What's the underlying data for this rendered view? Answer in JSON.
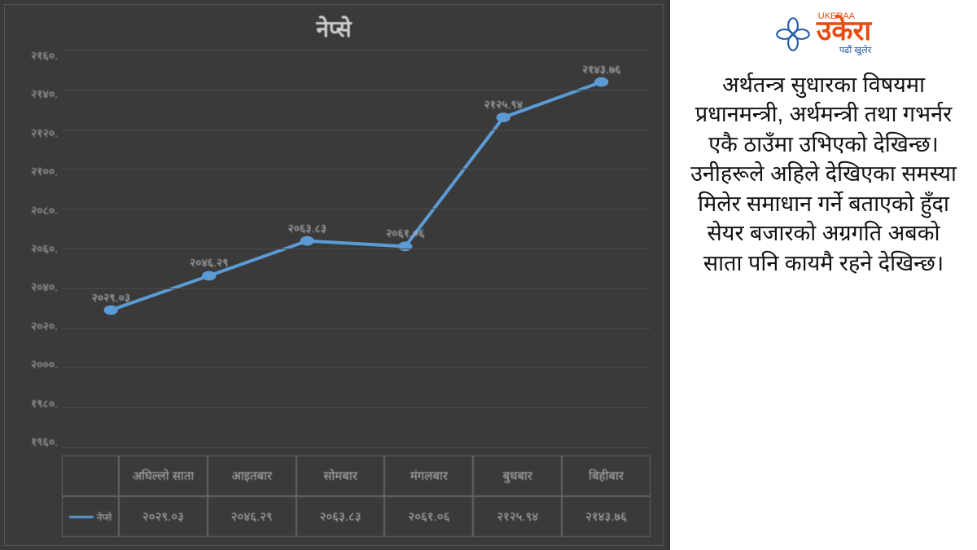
{
  "chart": {
    "type": "line",
    "title": "नेप्से",
    "title_fontsize": 28,
    "background_color": "#3a3a3a",
    "grid_color": "#4a4a4a",
    "text_color": "#b0b0b0",
    "line_color": "#5b9bd5",
    "line_width": 4,
    "marker_style": "circle",
    "marker_size": 6,
    "ylim": [
      1960,
      2160
    ],
    "ytick_step": 20,
    "y_ticks": [
      "२१६०.",
      "२१४०.",
      "२१२०.",
      "२१००.",
      "२०८०.",
      "२०६०.",
      "२०४०.",
      "२०२०.",
      "२०००.",
      "१९८०.",
      "१९६०."
    ],
    "categories": [
      "अघिल्लो साता",
      "आइतबार",
      "सोमबार",
      "मंगलबार",
      "बुधबार",
      "बिहीबार"
    ],
    "values": [
      2029.03,
      2046.29,
      2063.83,
      2061.06,
      2125.94,
      2143.76
    ],
    "value_labels": [
      "२०२९.०३",
      "२०४६.२९",
      "२०६३.८३",
      "२०६१.०६",
      "२१२५.९४",
      "२१४३.७६"
    ],
    "legend_label": "नेप्से"
  },
  "side": {
    "background_color": "#ffffff",
    "logo": {
      "icon_color": "#1e5aa8",
      "top_label": "UKERAA",
      "main_text": "उकेरा",
      "main_color": "#e84c0f",
      "tagline": "पढौं खुलेर",
      "tagline_color": "#1e5aa8"
    },
    "body_text": "अर्थतन्त्र सुधारका विषयमा प्रधानमन्त्री, अर्थमन्त्री तथा गभर्नर एकै ठाउँमा उभिएको देखिन्छ। उनीहरूले अहिले देखिएका समस्या मिलेर समाधान गर्ने बताएको हुँदा सेयर बजारको अग्रगति अबको साता पनि कायमै रहने देखिन्छ।",
    "body_fontsize": 27
  }
}
